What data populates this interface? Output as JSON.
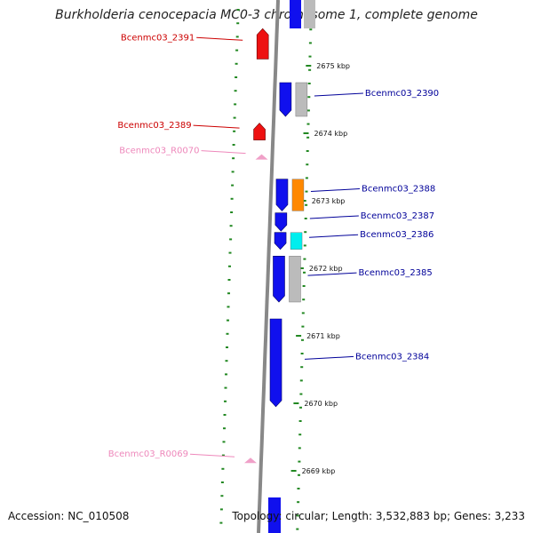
{
  "title": "Burkholderia cenocepacia MC0-3 chromosome 1, complete genome",
  "accession": "Accession: NC_010508",
  "topology": "Topology: circular; Length: 3,532,883 bp; Genes: 3,233",
  "colors": {
    "forward_gene": "#1010ee",
    "reverse_gene": "#ee1111",
    "rna": "#f0a0c8",
    "label_forward": "#000099",
    "label_reverse": "#cc0000",
    "label_rna": "#ee88bb",
    "axis": "#888888",
    "tick": "#228822",
    "orange_track": "#ff8800",
    "cyan_track": "#00eeee",
    "gray_track": "#bbbbbb"
  },
  "kbp_ticks": [
    {
      "label": "2675 kbp",
      "kbp": 2675
    },
    {
      "label": "2674 kbp",
      "kbp": 2674
    },
    {
      "label": "2673 kbp",
      "kbp": 2673
    },
    {
      "label": "2672 kbp",
      "kbp": 2672
    },
    {
      "label": "2671 kbp",
      "kbp": 2671
    },
    {
      "label": "2670 kbp",
      "kbp": 2670
    },
    {
      "label": "2669 kbp",
      "kbp": 2669
    }
  ],
  "genes": [
    {
      "label": "Bcenmc03_2391",
      "kind": "reverse",
      "start_kbp": 2675.1,
      "end_kbp": 2675.55
    },
    {
      "label": "Bcenmc03_2390",
      "kind": "forward",
      "start_kbp": 2674.25,
      "end_kbp": 2674.75,
      "track2": "gray"
    },
    {
      "label": "Bcenmc03_2389",
      "kind": "reverse",
      "start_kbp": 2673.9,
      "end_kbp": 2674.15
    },
    {
      "label": "Bcenmc03_R0070",
      "kind": "rna",
      "start_kbp": 2673.63,
      "end_kbp": 2673.67
    },
    {
      "label": "Bcenmc03_2388",
      "kind": "forward",
      "start_kbp": 2672.85,
      "end_kbp": 2673.32,
      "track2": "orange"
    },
    {
      "label": "Bcenmc03_2387",
      "kind": "forward",
      "start_kbp": 2672.55,
      "end_kbp": 2672.82
    },
    {
      "label": "Bcenmc03_2386",
      "kind": "forward",
      "start_kbp": 2672.28,
      "end_kbp": 2672.53,
      "track2": "cyan"
    },
    {
      "label": "Bcenmc03_2385",
      "kind": "forward",
      "start_kbp": 2671.5,
      "end_kbp": 2672.18,
      "track2": "gray"
    },
    {
      "label": "Bcenmc03_2384",
      "kind": "forward",
      "start_kbp": 2669.95,
      "end_kbp": 2671.25
    },
    {
      "label": "Bcenmc03_R0069",
      "kind": "rna",
      "start_kbp": 2669.13,
      "end_kbp": 2669.18
    }
  ]
}
